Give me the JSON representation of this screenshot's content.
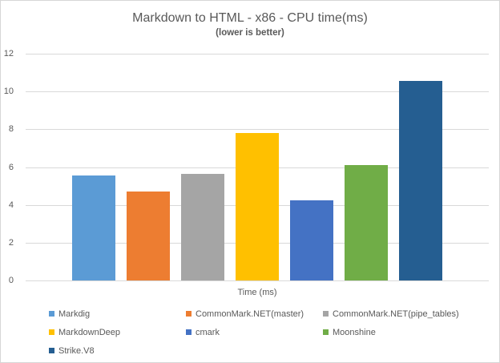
{
  "chart_data": {
    "type": "bar",
    "title": "Markdown to HTML - x86 - CPU time(ms)",
    "subtitle": "(lower is better)",
    "xlabel": "Time (ms)",
    "ylabel": "",
    "ylim": [
      0,
      12
    ],
    "yticks": [
      0,
      2,
      4,
      6,
      8,
      10,
      12
    ],
    "grid": true,
    "legend_position": "bottom-left",
    "categories": [
      "Markdig",
      "CommonMark.NET(master)",
      "CommonMark.NET(pipe_tables)",
      "MarkdownDeep",
      "cmark",
      "Moonshine",
      "Strike.V8"
    ],
    "series": [
      {
        "name": "Markdig",
        "value": 5.55,
        "color": "#5B9BD5"
      },
      {
        "name": "CommonMark.NET(master)",
        "value": 4.7,
        "color": "#ED7D31"
      },
      {
        "name": "CommonMark.NET(pipe_tables)",
        "value": 5.65,
        "color": "#A5A5A5"
      },
      {
        "name": "MarkdownDeep",
        "value": 7.8,
        "color": "#FFC000"
      },
      {
        "name": "cmark",
        "value": 4.25,
        "color": "#4472C4"
      },
      {
        "name": "Moonshine",
        "value": 6.1,
        "color": "#70AD47"
      },
      {
        "name": "Strike.V8",
        "value": 10.55,
        "color": "#255E91"
      }
    ],
    "colors": {
      "text": "#595959",
      "gridline": "#D9D9D9",
      "axis_line": "#C9C9C9",
      "background": "#FFFFFF",
      "border": "#D7D7D7"
    }
  }
}
